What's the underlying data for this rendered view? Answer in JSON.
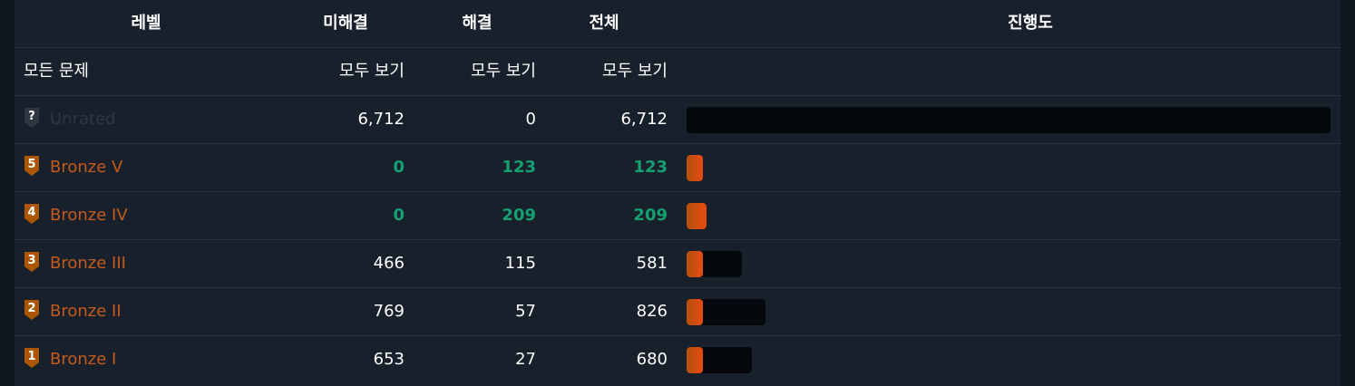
{
  "header": {
    "level": "레벨",
    "unsolved": "미해결",
    "solved": "해결",
    "total": "전체",
    "progress": "진행도"
  },
  "all_problems": {
    "label": "모든 문제",
    "unsolved_link": "모두 보기",
    "solved_link": "모두 보기",
    "total_link": "모두 보기"
  },
  "tiers": [
    {
      "name": "Unrated",
      "badge": "?",
      "unsolved": "6,712",
      "solved": "0",
      "total": "6,712",
      "solved_count": 0,
      "total_count": 6712,
      "highlight": false
    },
    {
      "name": "Bronze V",
      "badge": "5",
      "unsolved": "0",
      "solved": "123",
      "total": "123",
      "solved_count": 123,
      "total_count": 123,
      "highlight": true
    },
    {
      "name": "Bronze IV",
      "badge": "4",
      "unsolved": "0",
      "solved": "209",
      "total": "209",
      "solved_count": 209,
      "total_count": 209,
      "highlight": true
    },
    {
      "name": "Bronze III",
      "badge": "3",
      "unsolved": "466",
      "solved": "115",
      "total": "581",
      "solved_count": 115,
      "total_count": 581,
      "highlight": false
    },
    {
      "name": "Bronze II",
      "badge": "2",
      "unsolved": "769",
      "solved": "57",
      "total": "826",
      "solved_count": 57,
      "total_count": 826,
      "highlight": false
    },
    {
      "name": "Bronze I",
      "badge": "1",
      "unsolved": "653",
      "solved": "27",
      "total": "680",
      "solved_count": 27,
      "total_count": 680,
      "highlight": false
    }
  ],
  "colors": {
    "bronze": "#c45a1c",
    "unrated": "#2e3640",
    "complete_green": "#14a070",
    "bar_start": "#b3520c",
    "bar_end": "#e84a10"
  }
}
